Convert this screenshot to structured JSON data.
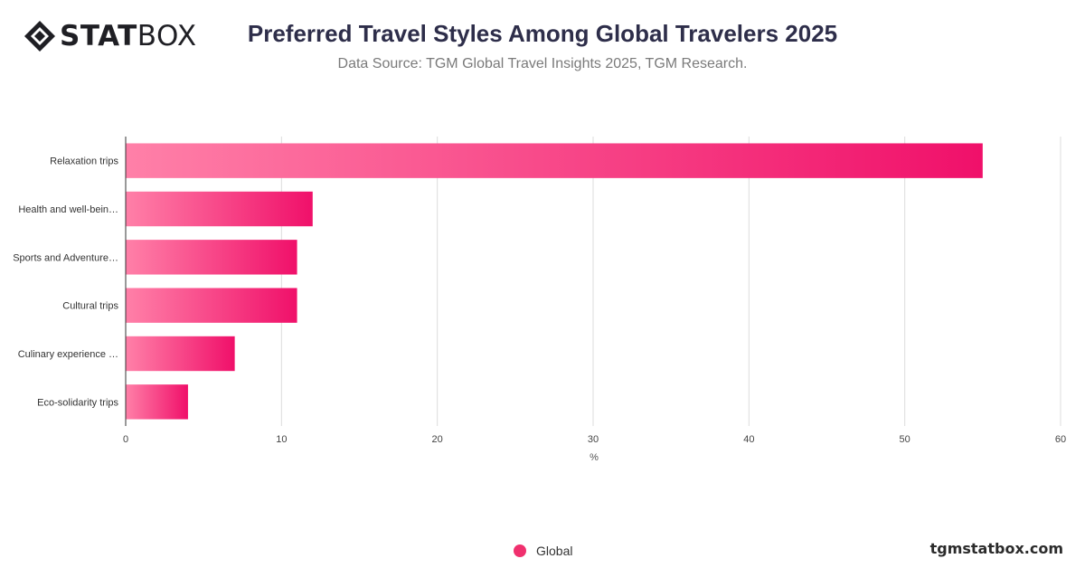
{
  "header": {
    "logo_text_strong": "STAT",
    "logo_text_light": "BOX",
    "title": "Preferred Travel Styles Among Global Travelers 2025",
    "subtitle": "Data Source: TGM Global Travel Insights 2025, TGM Research."
  },
  "legend": {
    "label": "Global"
  },
  "footer": {
    "site": "tgmstatbox.com"
  },
  "colors": {
    "bar_light": "#ff80a8",
    "bar_dark": "#f0106a",
    "grid": "#dcdcdc",
    "axis": "#333333",
    "legend": "#f0306e"
  },
  "chart_data": {
    "type": "bar",
    "orientation": "horizontal",
    "categories": [
      "Relaxation trips",
      "Health and well-bein…",
      "Sports and Adventure…",
      "Cultural trips",
      "Culinary experience …",
      "Eco-solidarity trips"
    ],
    "series": [
      {
        "name": "Global",
        "values": [
          55,
          12,
          11,
          11,
          7,
          4
        ]
      }
    ],
    "xlabel": "%",
    "ylabel": "",
    "xlim": [
      0,
      60
    ],
    "xticks": [
      0,
      10,
      20,
      30,
      40,
      50,
      60
    ],
    "grid": true,
    "legend_position": "bottom"
  }
}
